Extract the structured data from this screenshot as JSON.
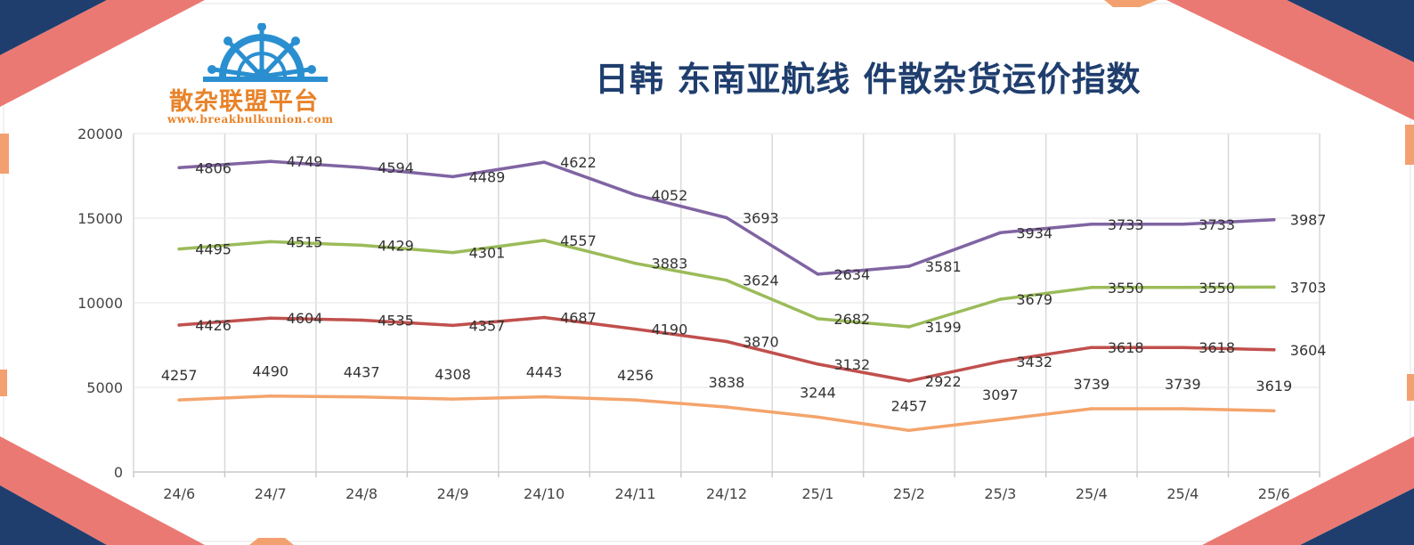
{
  "header": {
    "title": "日韩 东南亚航线 件散杂货运价指数",
    "brand_name": "散杂联盟平台",
    "brand_url": "www.breakbulkunion.com"
  },
  "colors": {
    "frame_navy": "#1f3e6e",
    "frame_coral": "#e8625a",
    "frame_peach": "#f3a070",
    "logo_blue": "#2a8fd0",
    "brand_orange": "#e8832a",
    "title_navy": "#1f3e6e"
  },
  "chart_data": {
    "type": "line",
    "title": "日韩 东南亚航线 件散杂货运价指数",
    "categories": [
      "24/6",
      "24/7",
      "24/8",
      "24/9",
      "24/10",
      "24/11",
      "24/12",
      "25/1",
      "25/2",
      "25/3",
      "25/4",
      "25/4",
      "25/6"
    ],
    "yticks": [
      "0",
      "5000",
      "10000",
      "15000",
      "20000"
    ],
    "ylim": [
      0,
      20000
    ],
    "stacked": true,
    "grid": "vertical and horizontal",
    "legend": "none",
    "series": [
      {
        "color": "#f4a46c",
        "values": [
          4257,
          4490,
          4437,
          4308,
          4443,
          4256,
          3838,
          3244,
          2457,
          3097,
          3739,
          3739,
          3619
        ],
        "labels": [
          "4257",
          "4490",
          "4437",
          "4308",
          "4443",
          "4256",
          "3838",
          "3244",
          "2457",
          "3097",
          "3739",
          "3739",
          "3619"
        ]
      },
      {
        "color": "#c0504d",
        "values": [
          4426,
          4604,
          4535,
          4357,
          4687,
          4190,
          3870,
          3132,
          2922,
          3432,
          3618,
          3618,
          3604
        ],
        "labels": [
          "4426",
          "4604",
          "4535",
          "4357",
          "4687",
          "4190",
          "3870",
          "3132",
          "2922",
          "3432",
          "3618",
          "3618",
          "3604"
        ]
      },
      {
        "color": "#9bbb59",
        "values": [
          4495,
          4515,
          4429,
          4301,
          4557,
          3883,
          3624,
          2682,
          3199,
          3679,
          3550,
          3550,
          3703
        ],
        "labels": [
          "4495",
          "4515",
          "4429",
          "4301",
          "4557",
          "3883",
          "3624",
          "2682",
          "3199",
          "3679",
          "3550",
          "3550",
          "3703"
        ]
      },
      {
        "color": "#8064a2",
        "values": [
          4806,
          4749,
          4594,
          4489,
          4622,
          4052,
          3693,
          2634,
          3581,
          3934,
          3733,
          3733,
          3987
        ],
        "labels": [
          "4806",
          "4749",
          "4594",
          "4489",
          "4622",
          "4052",
          "3693",
          "2634",
          "3581",
          "3934",
          "3733",
          "3733",
          "3987"
        ]
      }
    ]
  }
}
